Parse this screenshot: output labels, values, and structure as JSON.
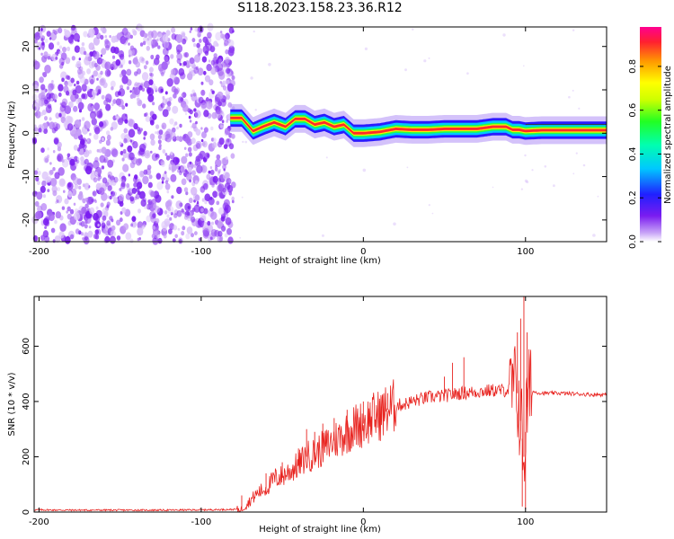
{
  "title": "S118.2023.158.23.36.R12",
  "colors": {
    "spectrum_noise": "#7a1cf0",
    "snr_line": "#e8231f",
    "frame": "#000000"
  },
  "colorbar": {
    "label": "Normalized spectral amplitude",
    "ticks": [
      "0.0",
      "0.2",
      "0.4",
      "0.6",
      "0.8"
    ],
    "tick_values": [
      0.0,
      0.2,
      0.4,
      0.6,
      0.8
    ],
    "range": [
      0,
      0.98
    ],
    "colormap": "hsv (violet-blue-cyan-green-yellow-orange-red-magenta)"
  },
  "chart_data": [
    {
      "type": "heatmap",
      "title": "",
      "xlabel": "Height of straight line (km)",
      "ylabel": "Frequency (Hz)",
      "xlim": [
        -203,
        150
      ],
      "ylim": [
        -25,
        24.5
      ],
      "xticks": [
        -200,
        -100,
        0,
        100
      ],
      "xtick_labels": [
        "-200",
        "-100",
        "0",
        "100"
      ],
      "yticks": [
        -20,
        -10,
        0,
        10,
        20
      ],
      "ytick_labels": [
        "-20",
        "-10",
        "0",
        "10",
        "20"
      ],
      "noise_region_x": [
        -203,
        -80
      ],
      "ridge_x": [
        -82,
        -75,
        -68,
        -62,
        -55,
        -48,
        -42,
        -36,
        -30,
        -24,
        -18,
        -12,
        -6,
        0,
        10,
        20,
        30,
        40,
        50,
        60,
        70,
        80,
        88,
        92,
        96,
        100,
        110,
        120,
        130,
        140,
        150
      ],
      "ridge_freq": [
        3.5,
        3.5,
        0.5,
        1.5,
        2.5,
        1.5,
        3.3,
        3.3,
        2.0,
        2.5,
        1.5,
        2.0,
        0.0,
        0.0,
        0.3,
        1.0,
        0.8,
        0.8,
        1.0,
        1.0,
        1.0,
        1.5,
        1.5,
        0.8,
        0.8,
        0.5,
        0.7,
        0.7,
        0.7,
        0.7,
        0.7
      ]
    },
    {
      "type": "line",
      "title": "",
      "xlabel": "Height of straight line (km)",
      "ylabel": "SNR (10 * v/v)",
      "xlim": [
        -203,
        150
      ],
      "ylim": [
        0,
        780
      ],
      "xticks": [
        -200,
        -100,
        0,
        100
      ],
      "xtick_labels": [
        "-200",
        "-100",
        "0",
        "100"
      ],
      "yticks": [
        0,
        200,
        400,
        600
      ],
      "ytick_labels": [
        "0",
        "200",
        "400",
        "600"
      ],
      "x": [
        -203,
        -180,
        -150,
        -120,
        -100,
        -85,
        -75,
        -70,
        -65,
        -60,
        -55,
        -50,
        -45,
        -40,
        -35,
        -30,
        -25,
        -20,
        -15,
        -10,
        -5,
        0,
        5,
        10,
        15,
        20,
        25,
        30,
        40,
        50,
        60,
        70,
        80,
        88,
        92,
        95,
        97,
        99,
        101,
        103,
        105,
        110,
        120,
        130,
        140,
        150
      ],
      "values": [
        8,
        7,
        7,
        7,
        8,
        9,
        10,
        40,
        70,
        85,
        120,
        130,
        150,
        170,
        200,
        210,
        230,
        250,
        270,
        290,
        310,
        320,
        340,
        350,
        370,
        385,
        390,
        400,
        415,
        420,
        430,
        435,
        440,
        440,
        445,
        430,
        330,
        200,
        380,
        440,
        435,
        430,
        430,
        428,
        425,
        425
      ],
      "spikes": [
        {
          "x": -75,
          "y": 60
        },
        {
          "x": -60,
          "y": 140
        },
        {
          "x": -50,
          "y": 180
        },
        {
          "x": -40,
          "y": 230
        },
        {
          "x": -35,
          "y": 300
        },
        {
          "x": -30,
          "y": 290
        },
        {
          "x": -25,
          "y": 320
        },
        {
          "x": -18,
          "y": 340
        },
        {
          "x": -10,
          "y": 370
        },
        {
          "x": 0,
          "y": 400
        },
        {
          "x": 10,
          "y": 410
        },
        {
          "x": 15,
          "y": 430
        },
        {
          "x": 50,
          "y": 490
        },
        {
          "x": 55,
          "y": 540
        },
        {
          "x": 62,
          "y": 560
        },
        {
          "x": 95,
          "y": 650
        },
        {
          "x": 97,
          "y": 700
        },
        {
          "x": 99,
          "y": 780
        },
        {
          "x": 100,
          "y": 10
        },
        {
          "x": 98,
          "y": 20
        },
        {
          "x": 101,
          "y": 650
        }
      ]
    }
  ]
}
